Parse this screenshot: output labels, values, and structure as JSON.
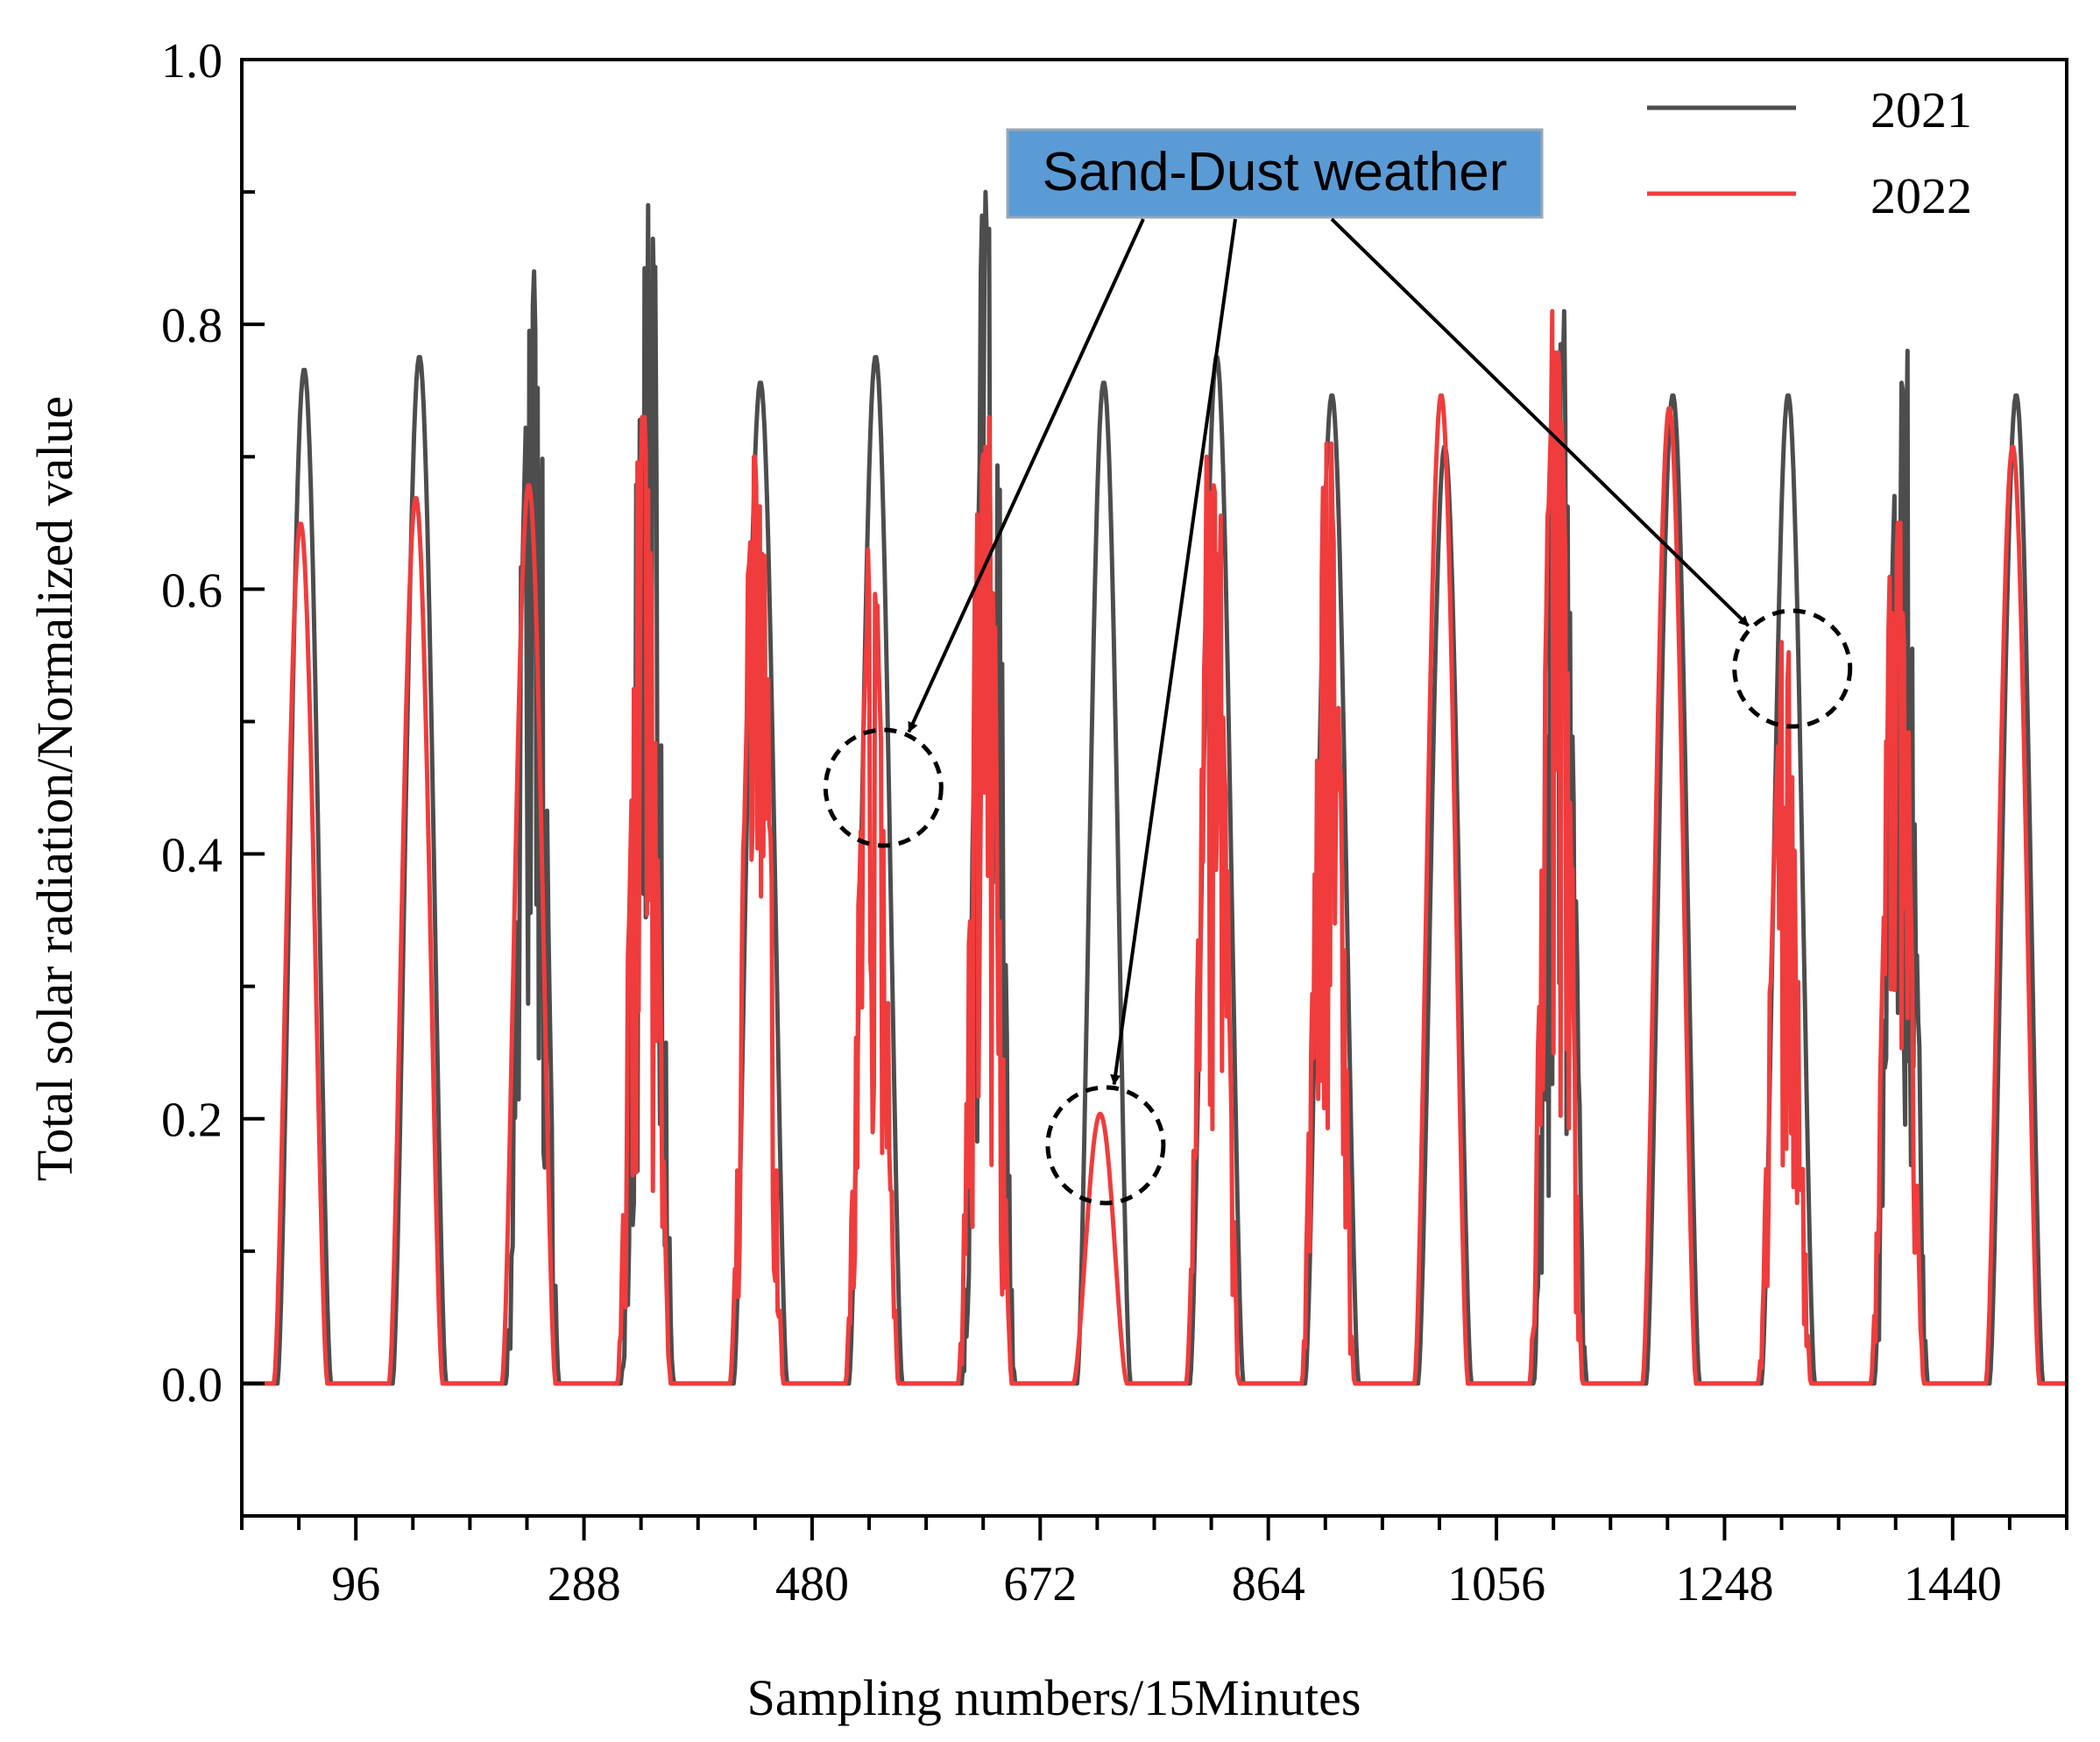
{
  "chart_data": {
    "type": "line",
    "title": "",
    "xlabel": "Sampling numbers/15Minutes",
    "ylabel": "Total solar radiation/Normalized value",
    "xlim": [
      0,
      1536
    ],
    "ylim": [
      -0.1,
      1.0
    ],
    "x_ticks": [
      96,
      288,
      480,
      672,
      864,
      1056,
      1248,
      1440
    ],
    "y_ticks": [
      "0.0",
      "0.2",
      "0.4",
      "0.6",
      "0.8",
      "1.0"
    ],
    "grid": false,
    "legend_position": "top-right",
    "samples_per_day": 96,
    "day_count": 16,
    "series": [
      {
        "name": "2021",
        "color": "#4d4d4d",
        "daily_peaks": [
          0.79,
          0.8,
          0.84,
          0.89,
          0.78,
          0.8,
          0.9,
          0.78,
          0.8,
          0.77,
          0.73,
          0.81,
          0.77,
          0.77,
          0.78,
          0.77
        ],
        "cloudy_days": [
          2,
          3,
          6,
          11,
          14
        ]
      },
      {
        "name": "2022",
        "color": "#f03c3c",
        "daily_peaks": [
          0.67,
          0.69,
          0.7,
          0.73,
          0.7,
          0.63,
          0.73,
          0.21,
          0.7,
          0.71,
          0.77,
          0.81,
          0.76,
          0.56,
          0.65,
          0.73
        ],
        "cloudy_days": [
          3,
          4,
          5,
          6,
          8,
          9,
          11,
          13,
          14
        ]
      }
    ],
    "annotations": [
      {
        "label": "Sand-Dust weather",
        "box_color": "#5b9bd5",
        "targets": [
          {
            "x": 540,
            "y": 0.45
          },
          {
            "x": 727,
            "y": 0.18
          },
          {
            "x": 1305,
            "y": 0.54
          }
        ]
      }
    ]
  }
}
